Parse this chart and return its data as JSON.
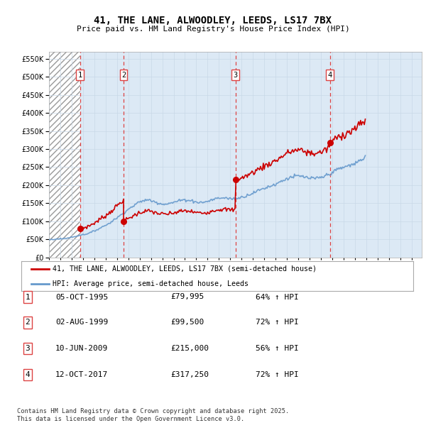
{
  "title": "41, THE LANE, ALWOODLEY, LEEDS, LS17 7BX",
  "subtitle": "Price paid vs. HM Land Registry's House Price Index (HPI)",
  "ytick_vals": [
    0,
    50000,
    100000,
    150000,
    200000,
    250000,
    300000,
    350000,
    400000,
    450000,
    500000,
    550000
  ],
  "ylim": [
    0,
    570000
  ],
  "sale_times": [
    1995.75,
    1999.583,
    2009.458,
    2017.792
  ],
  "sale_prices": [
    79995,
    99500,
    215000,
    317250
  ],
  "sale_labels": [
    "1",
    "2",
    "3",
    "4"
  ],
  "legend_line1": "41, THE LANE, ALWOODLEY, LEEDS, LS17 7BX (semi-detached house)",
  "legend_line2": "HPI: Average price, semi-detached house, Leeds",
  "table_data": [
    [
      "1",
      "05-OCT-1995",
      "£79,995",
      "64% ↑ HPI"
    ],
    [
      "2",
      "02-AUG-1999",
      "£99,500",
      "72% ↑ HPI"
    ],
    [
      "3",
      "10-JUN-2009",
      "£215,000",
      "56% ↑ HPI"
    ],
    [
      "4",
      "12-OCT-2017",
      "£317,250",
      "72% ↑ HPI"
    ]
  ],
  "footnote": "Contains HM Land Registry data © Crown copyright and database right 2025.\nThis data is licensed under the Open Government Licence v3.0.",
  "red_line_color": "#cc0000",
  "blue_line_color": "#6699cc",
  "grid_color": "#c8d8e8",
  "dashed_line_color": "#dd4444",
  "bg_light": "#dce9f5",
  "xmin": 1993.0,
  "xmax": 2025.9,
  "hpi_monthly": [
    49000,
    49200,
    49400,
    49600,
    49800,
    50000,
    50300,
    50500,
    50700,
    50900,
    51100,
    51200,
    51400,
    51600,
    51800,
    52000,
    52300,
    52600,
    53000,
    53400,
    53800,
    54200,
    54700,
    55200,
    55700,
    56200,
    56800,
    57400,
    58100,
    58800,
    59500,
    60200,
    60900,
    61500,
    62000,
    62500,
    63000,
    63500,
    64000,
    64500,
    65100,
    65800,
    66600,
    67600,
    68700,
    69900,
    71100,
    72200,
    73300,
    74400,
    75600,
    76900,
    78300,
    79700,
    81100,
    82500,
    83900,
    85200,
    86500,
    87800,
    89100,
    90400,
    91800,
    93300,
    94900,
    96700,
    98600,
    100500,
    102400,
    104300,
    106200,
    108000,
    109800,
    111600,
    113400,
    115200,
    117100,
    119100,
    121100,
    123200,
    125300,
    127400,
    129400,
    131300,
    133200,
    135000,
    136800,
    138500,
    140200,
    142000,
    143800,
    145600,
    147300,
    148900,
    150400,
    151800,
    153100,
    154300,
    155400,
    156400,
    157200,
    157900,
    158400,
    158700,
    158800,
    158700,
    158400,
    158000,
    157400,
    156700,
    155900,
    155000,
    154100,
    153200,
    152300,
    151400,
    150600,
    149900,
    149300,
    148800,
    148400,
    148100,
    148000,
    148000,
    148100,
    148300,
    148600,
    149000,
    149500,
    150100,
    150800,
    151500,
    152300,
    153100,
    153900,
    154700,
    155500,
    156200,
    156900,
    157500,
    158000,
    158400,
    158700,
    158900,
    159000,
    159000,
    158900,
    158700,
    158400,
    158000,
    157500,
    156900,
    156200,
    155500,
    154800,
    154200,
    153600,
    153100,
    152700,
    152400,
    152200,
    152200,
    152300,
    152500,
    152900,
    153300,
    153900,
    154500,
    155200,
    156000,
    156900,
    157800,
    158700,
    159600,
    160500,
    161300,
    162000,
    162700,
    163300,
    163800,
    164200,
    164500,
    164700,
    164800,
    164800,
    164700,
    164500,
    164300,
    164000,
    163700,
    163400,
    163100,
    162800,
    162600,
    162500,
    162500,
    162600,
    162800,
    163100,
    163500,
    164000,
    164600,
    165200,
    165900,
    166600,
    167400,
    168200,
    169100,
    170000,
    171000,
    172000,
    173000,
    174100,
    175200,
    176300,
    177400,
    178500,
    179600,
    180700,
    181800,
    182900,
    184000,
    185100,
    186200,
    187300,
    188400,
    189500,
    190500,
    191500,
    192500,
    193400,
    194300,
    195200,
    196100,
    197000,
    197900,
    198900,
    199900,
    200900,
    202000,
    203100,
    204300,
    205500,
    206800,
    208100,
    209400,
    210700,
    212000,
    213300,
    214600,
    215800,
    217000,
    218100,
    219200,
    220200,
    221100,
    221900,
    222600,
    223200,
    223700,
    224100,
    224400,
    224600,
    224700,
    224700,
    224600,
    224400,
    224100,
    223700,
    223200,
    222700,
    222100,
    221500,
    220900,
    220300,
    219800,
    219300,
    218900,
    218600,
    218400,
    218300,
    218300,
    218400,
    218600,
    218900,
    219300,
    219700,
    220300,
    221000,
    221800,
    222700,
    223700,
    224800,
    226000,
    227200,
    228500,
    229900,
    231300,
    232700,
    234100,
    235500,
    236900,
    238300,
    239600,
    240900,
    242100,
    243300,
    244400,
    245500,
    246500,
    247500,
    248400,
    249300,
    250100,
    250900,
    251700,
    252500,
    253300,
    254100,
    254900,
    255800,
    256700,
    257700,
    258800,
    260000,
    261300,
    262700,
    264200,
    265800,
    267500,
    269200,
    271000,
    272900,
    274800,
    276700,
    278600
  ],
  "hpi_start": 1993.0,
  "hpi_step": 0.08333
}
